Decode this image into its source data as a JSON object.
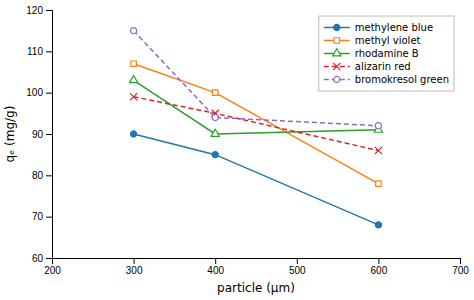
{
  "chart_data": {
    "type": "line",
    "xlabel": "particle (μm)",
    "ylabel": "qₑ (mg/g)",
    "x": [
      300,
      400,
      600
    ],
    "series": [
      {
        "name": "methylene blue",
        "values": [
          90,
          85,
          68
        ],
        "line_style": "solid",
        "marker": "circle-filled"
      },
      {
        "name": "methyl violet",
        "values": [
          107,
          100,
          78
        ],
        "line_style": "solid",
        "marker": "square"
      },
      {
        "name": "rhodamine B",
        "values": [
          103,
          90,
          91
        ],
        "line_style": "solid",
        "marker": "triangle"
      },
      {
        "name": "alizarin red",
        "values": [
          99,
          95,
          86
        ],
        "line_style": "dashed",
        "marker": "x"
      },
      {
        "name": "bromokresol green",
        "values": [
          115,
          94,
          92
        ],
        "line_style": "dashed",
        "marker": "circle"
      }
    ],
    "xlim": [
      200,
      700
    ],
    "ylim": [
      60,
      120
    ],
    "xticks": [
      200,
      300,
      400,
      500,
      600,
      700
    ],
    "yticks": [
      60,
      70,
      80,
      90,
      100,
      110,
      120
    ],
    "legend": "upper-right",
    "grid": false
  }
}
